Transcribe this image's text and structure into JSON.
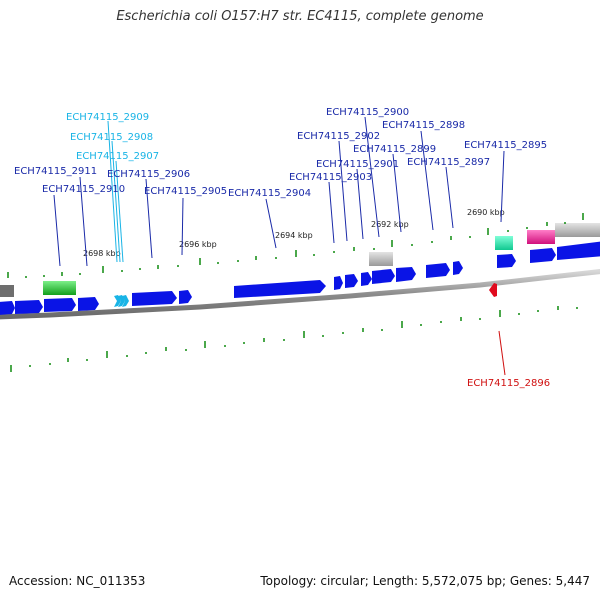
{
  "title": "Escherichia coli O157:H7 str. EC4115, complete genome",
  "footer": {
    "accession": "Accession: NC_011353",
    "summary": "Topology: circular; Length: 5,572,075 bp; Genes: 5,447"
  },
  "colors": {
    "forward_gene": "#0a14e6",
    "reverse_gene": "#e00a1e",
    "cyan_label": "#19b4e6",
    "blue_label": "#1a2aa8",
    "red_label": "#d01010",
    "tick": "#0f8a0f",
    "backbone": "#8c8c8c",
    "green_feature": "#21c22a",
    "teal_feature": "#18e0a0",
    "magenta_feature": "#e01a8c",
    "gray_feature": "#b8b8b8"
  },
  "scale_labels": [
    "2698 kbp",
    "2696 kbp",
    "2694 kbp",
    "2692 kbp",
    "2690 kbp"
  ],
  "gene_labels": [
    {
      "id": "ECH74115_2909",
      "color": "cyan"
    },
    {
      "id": "ECH74115_2908",
      "color": "cyan"
    },
    {
      "id": "ECH74115_2907",
      "color": "cyan"
    },
    {
      "id": "ECH74115_2911",
      "color": "blue"
    },
    {
      "id": "ECH74115_2910",
      "color": "blue"
    },
    {
      "id": "ECH74115_2906",
      "color": "blue"
    },
    {
      "id": "ECH74115_2905",
      "color": "blue"
    },
    {
      "id": "ECH74115_2904",
      "color": "blue"
    },
    {
      "id": "ECH74115_2900",
      "color": "blue"
    },
    {
      "id": "ECH74115_2902",
      "color": "blue"
    },
    {
      "id": "ECH74115_2898",
      "color": "blue"
    },
    {
      "id": "ECH74115_2899",
      "color": "blue"
    },
    {
      "id": "ECH74115_2901",
      "color": "blue"
    },
    {
      "id": "ECH74115_2903",
      "color": "blue"
    },
    {
      "id": "ECH74115_2897",
      "color": "blue"
    },
    {
      "id": "ECH74115_2895",
      "color": "blue"
    },
    {
      "id": "ECH74115_2896",
      "color": "red"
    }
  ]
}
